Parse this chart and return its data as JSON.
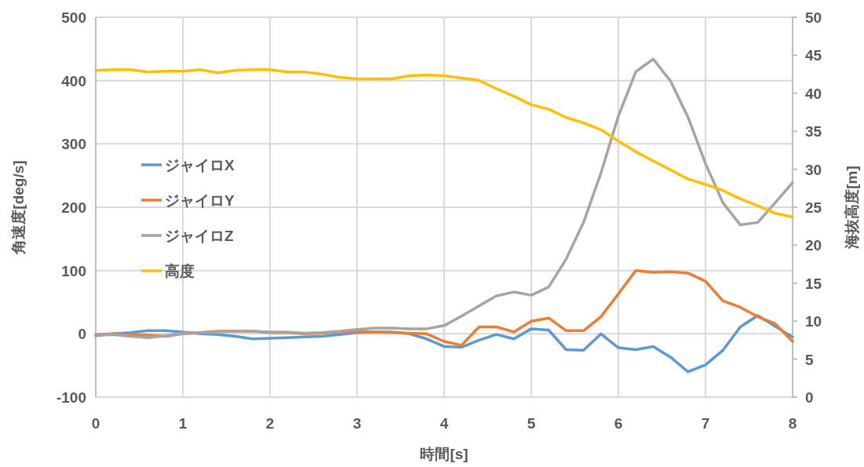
{
  "chart_data": {
    "type": "line",
    "xlabel": "時間[s]",
    "ylabel": "角速度[deg/s]",
    "y2label": "海抜高度[m]",
    "x": [
      0,
      0.2,
      0.4,
      0.6,
      0.8,
      1,
      1.2,
      1.4,
      1.6,
      1.8,
      2,
      2.2,
      2.4,
      2.6,
      2.8,
      3,
      3.2,
      3.4,
      3.6,
      3.8,
      4,
      4.2,
      4.4,
      4.6,
      4.8,
      5,
      5.2,
      5.4,
      5.6,
      5.8,
      6,
      6.2,
      6.4,
      6.6,
      6.8,
      7,
      7.2,
      7.4,
      7.6,
      7.8,
      8
    ],
    "xlim": [
      0,
      8
    ],
    "xticks": [
      0,
      1,
      2,
      3,
      4,
      5,
      6,
      7,
      8
    ],
    "ylim": [
      -100,
      500
    ],
    "yticks": [
      -100,
      0,
      100,
      200,
      300,
      400,
      500
    ],
    "y2lim": [
      0,
      50
    ],
    "y2ticks": [
      0,
      5,
      10,
      15,
      20,
      25,
      30,
      35,
      40,
      45,
      50
    ],
    "grid": true,
    "legend": "left",
    "marker": "none",
    "line_style": "solid",
    "series": [
      {
        "name": "ジャイロX",
        "color": "#5b9bd5",
        "values": [
          -3,
          0,
          2,
          5,
          5,
          3,
          0,
          -1,
          -4,
          -8,
          -7,
          -6,
          -5,
          -4,
          -1,
          2,
          3,
          3,
          0,
          -8,
          -20,
          -21,
          -10,
          -1,
          -8,
          8,
          6,
          -25,
          -26,
          0,
          -22,
          -25,
          -20,
          -37,
          -60,
          -49,
          -26,
          11,
          29,
          12,
          -5
        ]
      },
      {
        "name": "ジャイロY",
        "color": "#ed7d31",
        "values": [
          -1,
          0,
          -1,
          -2,
          -4,
          0,
          2,
          4,
          4,
          4,
          2,
          2,
          0,
          1,
          3,
          4,
          3,
          2,
          1,
          0,
          -12,
          -18,
          11,
          11,
          3,
          20,
          25,
          5,
          5,
          27,
          63,
          100,
          97,
          98,
          96,
          83,
          52,
          42,
          27,
          16,
          -12
        ]
      },
      {
        "name": "ジャイロZ",
        "color": "#a5a5a5",
        "values": [
          -2,
          -1,
          -4,
          -6,
          -3,
          1,
          2,
          3,
          4,
          4,
          3,
          3,
          1,
          2,
          4,
          7,
          9,
          9,
          8,
          8,
          13,
          28,
          44,
          60,
          66,
          61,
          74,
          118,
          176,
          254,
          344,
          414,
          434,
          399,
          342,
          269,
          207,
          172,
          176,
          207,
          239
        ]
      },
      {
        "name": "高度",
        "color": "#ffc000",
        "axis": "y2",
        "values": [
          43.0,
          43.1,
          43.1,
          42.8,
          42.9,
          42.9,
          43.1,
          42.7,
          43.0,
          43.1,
          43.1,
          42.8,
          42.8,
          42.5,
          42.1,
          41.9,
          41.9,
          41.9,
          42.3,
          42.4,
          42.3,
          42.0,
          41.7,
          40.6,
          39.6,
          38.5,
          37.9,
          36.8,
          36.1,
          35.2,
          33.7,
          32.3,
          31.1,
          29.9,
          28.7,
          28.0,
          27.2,
          26.1,
          25.2,
          24.2,
          23.7
        ]
      }
    ]
  }
}
